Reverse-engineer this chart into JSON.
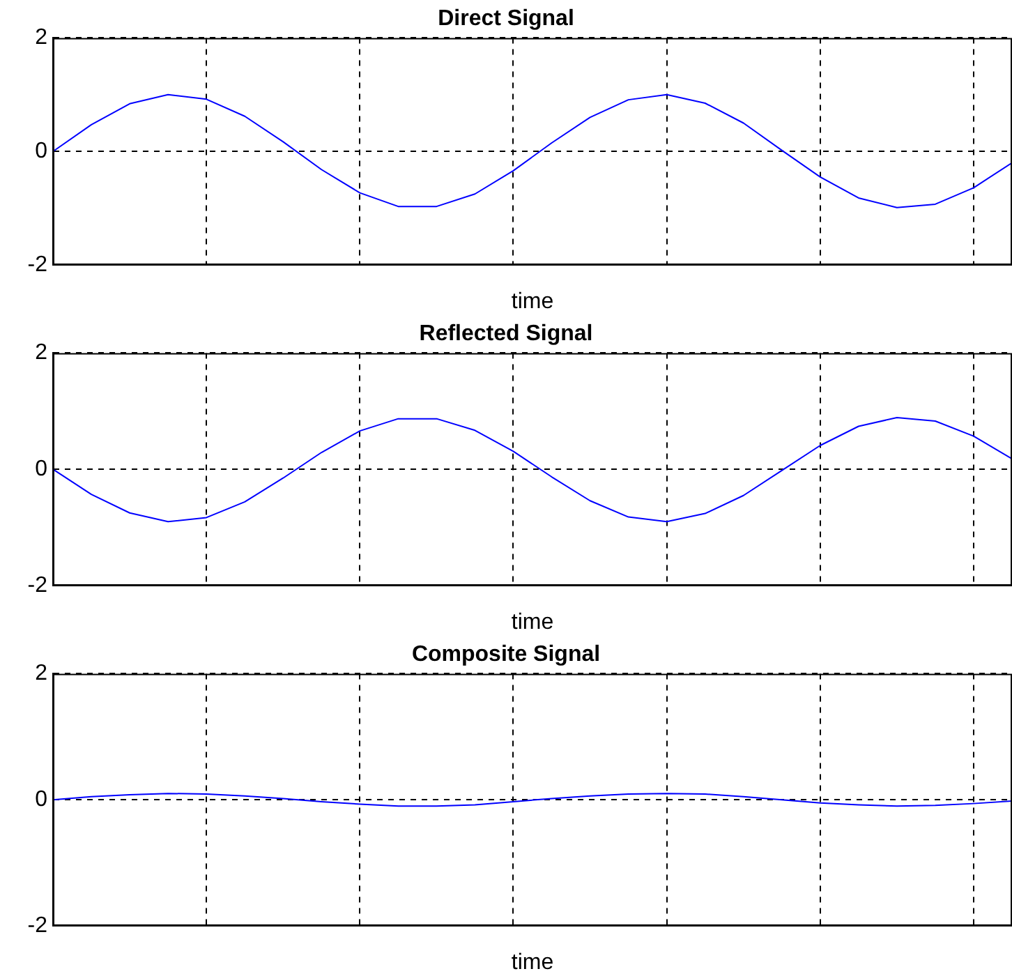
{
  "chart_data": [
    {
      "type": "line",
      "title": "Direct Signal",
      "xlabel": "time",
      "categories": [
        null,
        null,
        null,
        null,
        null,
        null,
        null,
        null,
        null,
        null,
        null,
        null,
        null,
        null,
        null,
        null,
        null,
        null,
        null,
        null,
        null,
        null,
        null,
        null,
        null,
        null
      ],
      "series": [
        {
          "color": "#0000ff",
          "values": [
            0,
            0.47,
            0.84,
            1,
            0.92,
            0.62,
            0.17,
            -0.32,
            -0.73,
            -0.97,
            -0.97,
            -0.75,
            -0.34,
            0.15,
            0.6,
            0.91,
            1,
            0.85,
            0.5,
            0.02,
            -0.45,
            -0.82,
            -0.99,
            -0.93,
            -0.64,
            -0.2
          ]
        }
      ],
      "ylim": [
        -2,
        2
      ],
      "yticks": [
        -2,
        0,
        2
      ],
      "grid": true,
      "legend": false,
      "line_style": "solid"
    },
    {
      "type": "line",
      "title": "Reflected Signal",
      "xlabel": "time",
      "categories": [
        null,
        null,
        null,
        null,
        null,
        null,
        null,
        null,
        null,
        null,
        null,
        null,
        null,
        null,
        null,
        null,
        null,
        null,
        null,
        null,
        null,
        null,
        null,
        null,
        null,
        null
      ],
      "series": [
        {
          "color": "#0000ff",
          "values": [
            0,
            -0.43,
            -0.75,
            -0.9,
            -0.83,
            -0.56,
            -0.15,
            0.29,
            0.66,
            0.87,
            0.87,
            0.67,
            0.31,
            -0.13,
            -0.54,
            -0.82,
            -0.9,
            -0.76,
            -0.45,
            -0.02,
            0.41,
            0.74,
            0.89,
            0.83,
            0.57,
            0.18
          ]
        }
      ],
      "ylim": [
        -2,
        2
      ],
      "yticks": [
        -2,
        0,
        2
      ],
      "grid": true,
      "legend": false,
      "line_style": "solid"
    },
    {
      "type": "line",
      "title": "Composite Signal",
      "xlabel": "time",
      "categories": [
        null,
        null,
        null,
        null,
        null,
        null,
        null,
        null,
        null,
        null,
        null,
        null,
        null,
        null,
        null,
        null,
        null,
        null,
        null,
        null,
        null,
        null,
        null,
        null,
        null,
        null
      ],
      "series": [
        {
          "color": "#0000ff",
          "values": [
            0,
            0.05,
            0.08,
            0.1,
            0.09,
            0.06,
            0.02,
            -0.03,
            -0.07,
            -0.1,
            -0.1,
            -0.08,
            -0.03,
            0.02,
            0.06,
            0.09,
            0.1,
            0.09,
            0.05,
            0,
            -0.05,
            -0.08,
            -0.1,
            -0.09,
            -0.06,
            -0.02
          ]
        }
      ],
      "ylim": [
        -2,
        2
      ],
      "yticks": [
        -2,
        0,
        2
      ],
      "grid": true,
      "legend": false,
      "line_style": "solid"
    }
  ]
}
